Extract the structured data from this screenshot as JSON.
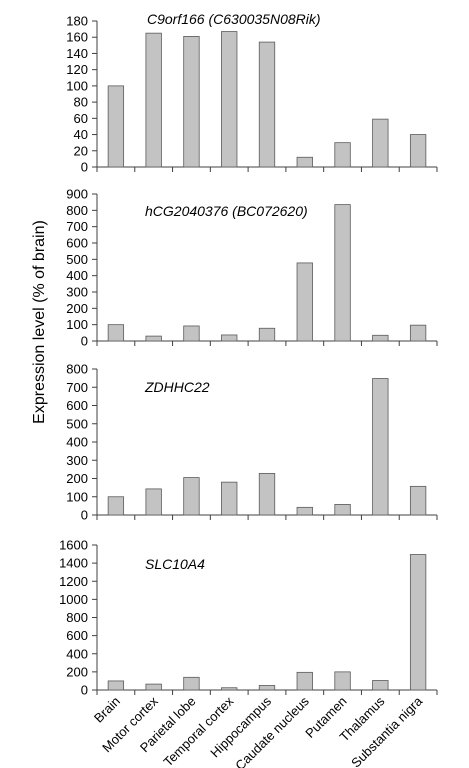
{
  "ylabel": "Expression level (% of brain)",
  "categories": [
    "Brain",
    "Motor cortex",
    "Parietal lobe",
    "Temporal cortex",
    "Hippocampus",
    "Caudate nucleus",
    "Putamen",
    "Thalamus",
    "Substantia nigra"
  ],
  "chart_data": [
    {
      "type": "bar",
      "title": "C9orf166 (C630035N08Rik)",
      "categories": [
        "Brain",
        "Motor cortex",
        "Parietal lobe",
        "Temporal cortex",
        "Hippocampus",
        "Caudate nucleus",
        "Putamen",
        "Thalamus",
        "Substantia nigra"
      ],
      "values": [
        100,
        165,
        161,
        167,
        154,
        12,
        30,
        59,
        40
      ],
      "ylim": [
        0,
        180
      ],
      "yticks": [
        0,
        20,
        40,
        60,
        80,
        100,
        120,
        140,
        160,
        180
      ],
      "ylabel": "Expression level (% of brain)",
      "grid": false,
      "fill": "#c3c3c3"
    },
    {
      "type": "bar",
      "title": "hCG2040376 (BC072620)",
      "categories": [
        "Brain",
        "Motor cortex",
        "Parietal lobe",
        "Temporal cortex",
        "Hippocampus",
        "Caudate nucleus",
        "Putamen",
        "Thalamus",
        "Substantia nigra"
      ],
      "values": [
        100,
        30,
        92,
        37,
        78,
        478,
        835,
        35,
        97
      ],
      "ylim": [
        0,
        900
      ],
      "yticks": [
        0,
        100,
        200,
        300,
        400,
        500,
        600,
        700,
        800,
        900
      ],
      "ylabel": "Expression level (% of brain)",
      "grid": false,
      "fill": "#c3c3c3"
    },
    {
      "type": "bar",
      "title": "ZDHHC22",
      "categories": [
        "Brain",
        "Motor cortex",
        "Parietal lobe",
        "Temporal cortex",
        "Hippocampus",
        "Caudate nucleus",
        "Putamen",
        "Thalamus",
        "Substantia nigra"
      ],
      "values": [
        100,
        143,
        205,
        180,
        228,
        42,
        58,
        748,
        157
      ],
      "ylim": [
        0,
        800
      ],
      "yticks": [
        0,
        100,
        200,
        300,
        400,
        500,
        600,
        700,
        800
      ],
      "ylabel": "Expression level (% of brain)",
      "grid": false,
      "fill": "#c3c3c3"
    },
    {
      "type": "bar",
      "title": "SLC10A4",
      "categories": [
        "Brain",
        "Motor cortex",
        "Parietal lobe",
        "Temporal cortex",
        "Hippocampus",
        "Caudate nucleus",
        "Putamen",
        "Thalamus",
        "Substantia nigra"
      ],
      "values": [
        100,
        65,
        140,
        25,
        50,
        195,
        200,
        105,
        1495
      ],
      "ylim": [
        0,
        1600
      ],
      "yticks": [
        0,
        200,
        400,
        600,
        800,
        1000,
        1200,
        1400,
        1600
      ],
      "ylabel": "Expression level (% of brain)",
      "grid": false,
      "fill": "#c3c3c3"
    }
  ]
}
